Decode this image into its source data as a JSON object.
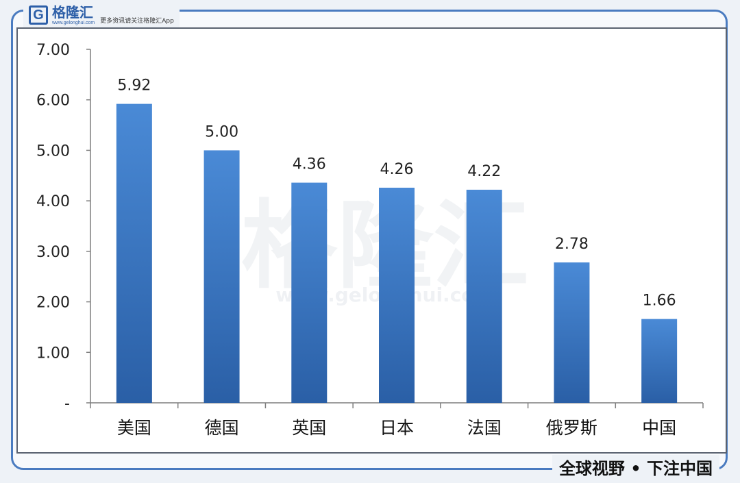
{
  "logo": {
    "letter": "G",
    "name": "格隆汇",
    "url": "www.gelonghui.com",
    "tagline": "更多资讯请关注格隆汇App"
  },
  "watermark": {
    "text": "格隆汇",
    "url": "www.gelonghui.com"
  },
  "slogan": "全球视野 • 下注中国",
  "colors": {
    "bar_top": "#4a8ad6",
    "bar_bottom": "#2a5fa6",
    "frame": "#4a7bc0",
    "accent": "#2d5fa8"
  },
  "chart_data": {
    "type": "bar",
    "categories": [
      "美国",
      "德国",
      "英国",
      "日本",
      "法国",
      "俄罗斯",
      "中国"
    ],
    "values": [
      5.92,
      5.0,
      4.36,
      4.26,
      4.22,
      2.78,
      1.66
    ],
    "data_labels": [
      "5.92",
      "5.00",
      "4.36",
      "4.26",
      "4.22",
      "2.78",
      "1.66"
    ],
    "ylim": [
      0,
      7
    ],
    "y_ticks": [
      0,
      1,
      2,
      3,
      4,
      5,
      6,
      7
    ],
    "y_tick_labels": [
      "-",
      "1.00",
      "2.00",
      "3.00",
      "4.00",
      "5.00",
      "6.00",
      "7.00"
    ],
    "grid": false,
    "legend": "none"
  }
}
